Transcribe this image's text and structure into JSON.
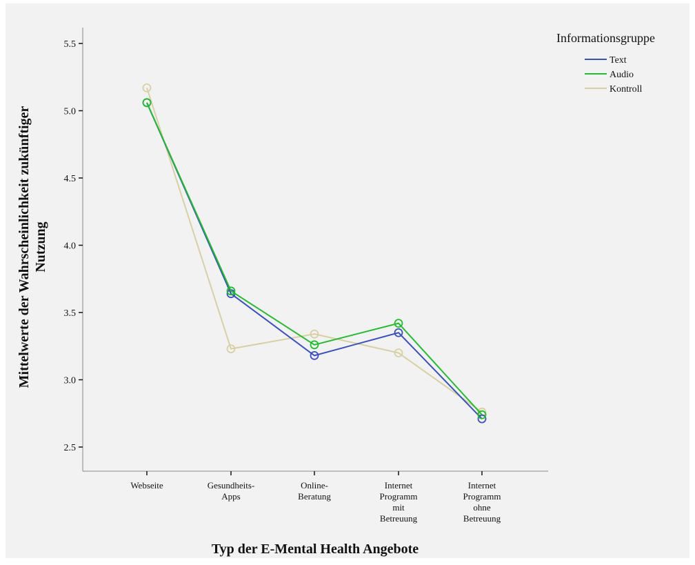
{
  "chart_data": {
    "type": "line",
    "title": "",
    "xlabel": "Typ der E-Mental Health Angebote",
    "ylabel_lines": [
      "Mittelwerte der Wahrscheinlichkeit zukünftiger",
      "Nutzung"
    ],
    "ylim": [
      2.4,
      5.7
    ],
    "yticks": [
      "2.5",
      "3.0",
      "3.5",
      "4.0",
      "4.5",
      "5.0",
      "5.5"
    ],
    "categories": [
      [
        "Webseite"
      ],
      [
        "Gesundheits-",
        "Apps"
      ],
      [
        "Online-",
        "Beratung"
      ],
      [
        "Internet",
        "Programm",
        "mit",
        "Betreuung"
      ],
      [
        "Internet",
        "Programm",
        "ohne",
        "Betreuung"
      ]
    ],
    "legend_title": "Informationsgruppe",
    "legend_position": "top-right",
    "grid": false,
    "series": [
      {
        "name": "Text",
        "color": "#3a4fc4",
        "values": [
          5.06,
          3.64,
          3.18,
          3.35,
          2.71
        ]
      },
      {
        "name": "Audio",
        "color": "#1fbf2a",
        "values": [
          5.06,
          3.66,
          3.26,
          3.42,
          2.74
        ]
      },
      {
        "name": "Kontroll",
        "color": "#d8d0a0",
        "values": [
          5.17,
          3.23,
          3.34,
          3.2,
          2.76
        ]
      }
    ]
  }
}
